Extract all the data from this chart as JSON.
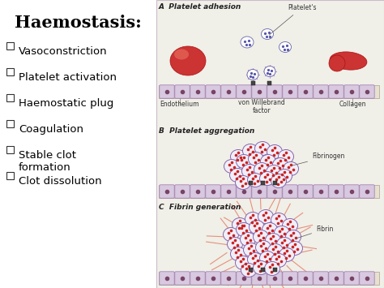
{
  "title": "Haemostasis:",
  "title_fontsize": 15,
  "bg_color": "#f2f0f5",
  "left_bg": "#ffffff",
  "right_bg": "#f0efe8",
  "bullet_items": [
    "Vasoconstriction",
    "Platelet activation",
    "Haemostatic plug",
    "Coagulation",
    "Stable clot\nformation",
    "Clot dissolution"
  ],
  "bullet_fontsize": 9.5,
  "section_A": "A  Platelet adhesion",
  "section_B": "B  Platelet aggregation",
  "section_C": "C  Fibrin generation",
  "wall_bg": "#e8e0d0",
  "wall_cell_fill": "#d8c8e0",
  "wall_cell_edge": "#9977aa",
  "nucleus_color": "#774466",
  "anchor_color": "#444444",
  "rbc_color": "#cc3333",
  "rbc_highlight": "#ee7766",
  "platelet_fill": "#aaaacc",
  "platelet_edge": "#6666aa",
  "clot_fill": "#f0eef8",
  "clot_edge": "#8866aa",
  "clot_dot": "#cc2222",
  "fibrin_line": "#dd4422",
  "label_color": "#333333",
  "label_fontsize": 5.5
}
